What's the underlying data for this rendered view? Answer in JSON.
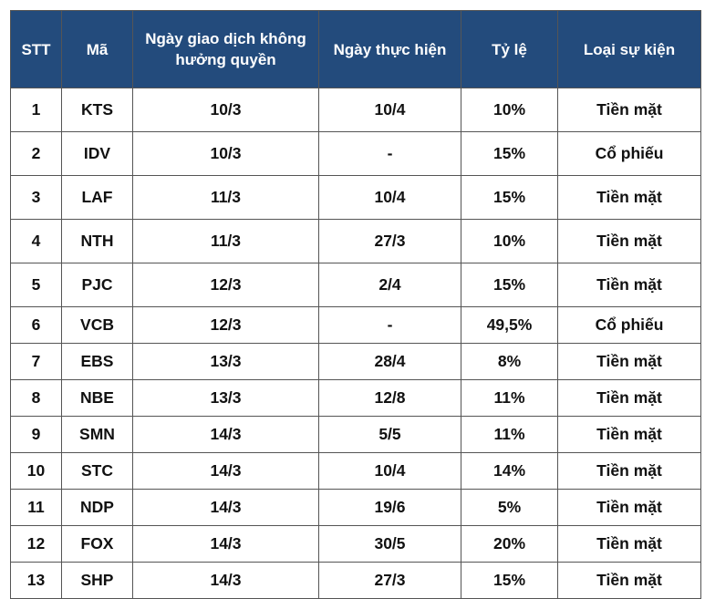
{
  "table": {
    "headers": [
      "STT",
      "Mã",
      "Ngày giao dịch không hưởng quyền",
      "Ngày thực hiện",
      "Tỷ lệ",
      "Loại sự kiện"
    ],
    "rows": [
      [
        "1",
        "KTS",
        "10/3",
        "10/4",
        "10%",
        "Tiền mặt"
      ],
      [
        "2",
        "IDV",
        "10/3",
        "-",
        "15%",
        "Cổ phiếu"
      ],
      [
        "3",
        "LAF",
        "11/3",
        "10/4",
        "15%",
        "Tiền mặt"
      ],
      [
        "4",
        "NTH",
        "11/3",
        "27/3",
        "10%",
        "Tiền mặt"
      ],
      [
        "5",
        "PJC",
        "12/3",
        "2/4",
        "15%",
        "Tiền mặt"
      ],
      [
        "6",
        "VCB",
        "12/3",
        "-",
        "49,5%",
        "Cổ phiếu"
      ],
      [
        "7",
        "EBS",
        "13/3",
        "28/4",
        "8%",
        "Tiền mặt"
      ],
      [
        "8",
        "NBE",
        "13/3",
        "12/8",
        "11%",
        "Tiền mặt"
      ],
      [
        "9",
        "SMN",
        "14/3",
        "5/5",
        "11%",
        "Tiền mặt"
      ],
      [
        "10",
        "STC",
        "14/3",
        "10/4",
        "14%",
        "Tiền mặt"
      ],
      [
        "11",
        "NDP",
        "14/3",
        "19/6",
        "5%",
        "Tiền mặt"
      ],
      [
        "12",
        "FOX",
        "14/3",
        "30/5",
        "20%",
        "Tiền mặt"
      ],
      [
        "13",
        "SHP",
        "14/3",
        "27/3",
        "15%",
        "Tiền mặt"
      ]
    ]
  },
  "colors": {
    "header_background": "#234b7c",
    "header_text": "#ffffff",
    "border": "#555555"
  }
}
